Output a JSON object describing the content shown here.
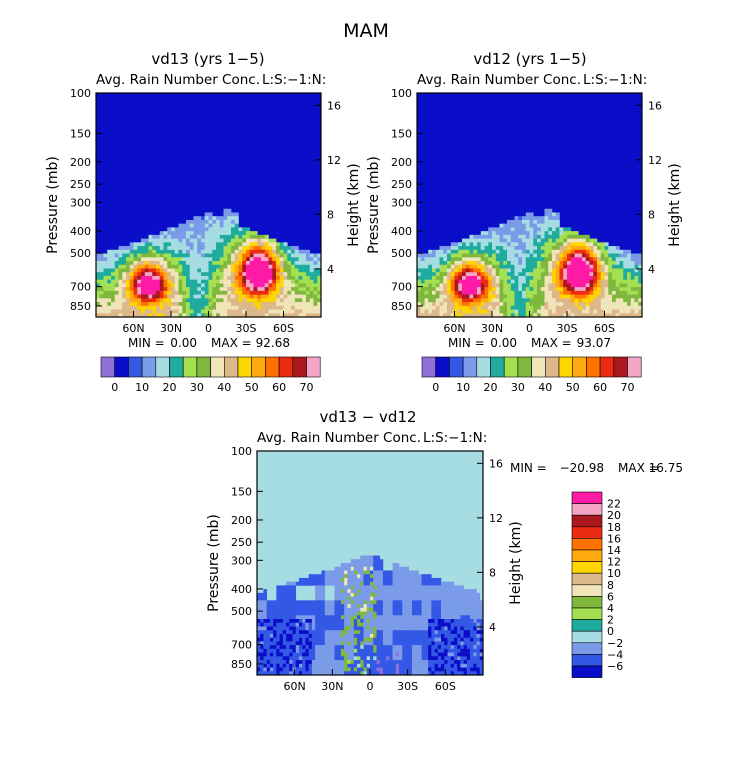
{
  "figure_title": "MAM",
  "colors": {
    "background": "#0a0ec8",
    "levels": [
      "#8f70d6",
      "#0a0ec8",
      "#3458e6",
      "#7b9be9",
      "#a6dde3",
      "#20ab9f",
      "#a5e052",
      "#7fb83d",
      "#f0e4b9",
      "#dcb88a",
      "#ffd500",
      "#ffaa10",
      "#ff7200",
      "#ec2b13",
      "#a8181d",
      "#f5a5c5",
      "#ff1ba6"
    ],
    "diff_levels": [
      "#8f70d6",
      "#0a0ec8",
      "#3458e6",
      "#7b9be9",
      "#a6dde3",
      "#20ab9f",
      "#a5e052",
      "#7fb83d",
      "#f0e4b9",
      "#dcb88a",
      "#ffd500",
      "#ffaa10",
      "#ff7200",
      "#ec2b13",
      "#a8181d",
      "#f5a5c5",
      "#ff1ba6"
    ]
  },
  "chart_data": [
    {
      "type": "heatmap",
      "title": "vd13 (yrs 1−5)",
      "subtitle": "Avg. Rain Number Conc.",
      "corner_label": "L:S:−1:N:",
      "ylabel": "Pressure (mb)",
      "ylabel_right": "Height (km)",
      "xticks": [
        "60N",
        "30N",
        "0",
        "30S",
        "60S"
      ],
      "x_values": [
        60,
        30,
        0,
        -30,
        -60
      ],
      "xlim": [
        90,
        -90
      ],
      "yticks": [
        "100",
        "150",
        "200",
        "250",
        "300",
        "400",
        "500",
        "700",
        "850"
      ],
      "y_values": [
        100,
        150,
        200,
        250,
        300,
        400,
        500,
        700,
        850
      ],
      "ylim": [
        100,
        950
      ],
      "yscale": "log",
      "right_ticks": [
        "16",
        "12",
        "8",
        "4"
      ],
      "right_values": [
        16,
        12,
        8,
        4
      ],
      "min_label": "MIN =",
      "min_value": "0.00",
      "max_label": "MAX =",
      "max_value": "92.68",
      "colorbar_labels": [
        "0",
        "10",
        "20",
        "30",
        "40",
        "50",
        "60",
        "70"
      ],
      "colorbar_levels": [
        0,
        5,
        10,
        15,
        20,
        25,
        30,
        35,
        40,
        45,
        50,
        55,
        60,
        65,
        70,
        75
      ],
      "colorbar_label_indices": [
        1,
        3,
        5,
        7,
        9,
        11,
        13,
        15
      ],
      "min": 0.0,
      "max": 92.68
    },
    {
      "type": "heatmap",
      "title": "vd12 (yrs 1−5)",
      "subtitle": "Avg. Rain Number Conc.",
      "corner_label": "L:S:−1:N:",
      "ylabel": "Pressure (mb)",
      "ylabel_right": "Height (km)",
      "xticks": [
        "60N",
        "30N",
        "0",
        "30S",
        "60S"
      ],
      "x_values": [
        60,
        30,
        0,
        -30,
        -60
      ],
      "xlim": [
        90,
        -90
      ],
      "yticks": [
        "100",
        "150",
        "200",
        "250",
        "300",
        "400",
        "500",
        "700",
        "850"
      ],
      "y_values": [
        100,
        150,
        200,
        250,
        300,
        400,
        500,
        700,
        850
      ],
      "ylim": [
        100,
        950
      ],
      "yscale": "log",
      "right_ticks": [
        "16",
        "12",
        "8",
        "4"
      ],
      "right_values": [
        16,
        12,
        8,
        4
      ],
      "min_label": "MIN =",
      "min_value": "0.00",
      "max_label": "MAX =",
      "max_value": "93.07",
      "colorbar_labels": [
        "0",
        "10",
        "20",
        "30",
        "40",
        "50",
        "60",
        "70"
      ],
      "colorbar_levels": [
        0,
        5,
        10,
        15,
        20,
        25,
        30,
        35,
        40,
        45,
        50,
        55,
        60,
        65,
        70,
        75
      ],
      "colorbar_label_indices": [
        1,
        3,
        5,
        7,
        9,
        11,
        13,
        15
      ],
      "min": 0.0,
      "max": 93.07
    },
    {
      "type": "heatmap",
      "title": "vd13 − vd12",
      "subtitle": "Avg. Rain Number Conc.",
      "corner_label": "L:S:−1:N:",
      "ylabel": "Pressure (mb)",
      "ylabel_right": "Height (km)",
      "xticks": [
        "60N",
        "30N",
        "0",
        "30S",
        "60S"
      ],
      "x_values": [
        60,
        30,
        0,
        -30,
        -60
      ],
      "xlim": [
        90,
        -90
      ],
      "yticks": [
        "100",
        "150",
        "200",
        "250",
        "300",
        "400",
        "500",
        "700",
        "850"
      ],
      "y_values": [
        100,
        150,
        200,
        250,
        300,
        400,
        500,
        700,
        850
      ],
      "ylim": [
        100,
        950
      ],
      "yscale": "log",
      "right_ticks": [
        "16",
        "12",
        "8",
        "4"
      ],
      "right_values": [
        16,
        12,
        8,
        4
      ],
      "min_label": "MIN =",
      "min_value": "−20.98",
      "max_label": "MAX =",
      "max_value": "16.75",
      "colorbar_labels": [
        "22",
        "20",
        "18",
        "16",
        "14",
        "12",
        "10",
        "8",
        "6",
        "4",
        "2",
        "0",
        "−2",
        "−4",
        "−6"
      ],
      "colorbar_levels": [
        22,
        20,
        18,
        16,
        14,
        12,
        10,
        8,
        6,
        4,
        2,
        0,
        -2,
        -4,
        -6
      ],
      "min": -20.98,
      "max": 16.75
    }
  ]
}
